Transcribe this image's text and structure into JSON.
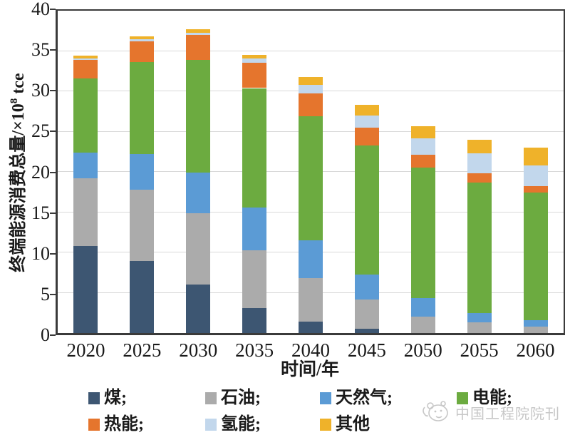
{
  "chart_data": {
    "type": "bar",
    "stacked": true,
    "title": "",
    "xlabel": "时间/年",
    "ylabel": "终端能源消费总量/×10⁸ tce",
    "ylim": [
      0,
      40
    ],
    "ytick_step": 5,
    "grid": true,
    "legend_position": "bottom",
    "categories": [
      "2020",
      "2025",
      "2030",
      "2035",
      "2040",
      "2045",
      "2050",
      "2055",
      "2060"
    ],
    "series": [
      {
        "id": "coal",
        "name": "煤",
        "color": "#3D5672",
        "values": [
          10.8,
          8.9,
          6.0,
          3.1,
          1.4,
          0.5,
          0,
          0,
          0
        ]
      },
      {
        "id": "oil",
        "name": "石油",
        "color": "#ABABAB",
        "values": [
          8.4,
          8.9,
          8.9,
          7.2,
          5.4,
          3.7,
          2.0,
          1.3,
          0.8
        ]
      },
      {
        "id": "natural-gas",
        "name": "天然气",
        "color": "#5B9BD5",
        "values": [
          3.2,
          4.4,
          5.0,
          5.3,
          4.7,
          3.1,
          2.3,
          1.2,
          0.8
        ]
      },
      {
        "id": "electricity",
        "name": "电能",
        "color": "#6CAB40",
        "values": [
          9.2,
          11.4,
          14.0,
          14.8,
          15.4,
          16.0,
          16.2,
          16.2,
          15.8
        ]
      },
      {
        "id": "heat",
        "name": "热能",
        "color": "#E5752D",
        "values": [
          2.3,
          2.6,
          3.1,
          3.1,
          2.8,
          2.2,
          1.6,
          1.1,
          0.8
        ]
      },
      {
        "id": "hydrogen",
        "name": "氢能",
        "color": "#C2D7EC",
        "values": [
          0.2,
          0.3,
          0.3,
          0.6,
          1.1,
          1.5,
          2.1,
          2.5,
          2.6
        ]
      },
      {
        "id": "other",
        "name": "其他",
        "color": "#EFB22A",
        "values": [
          0.3,
          0.3,
          0.4,
          0.4,
          1.0,
          1.3,
          1.5,
          1.7,
          2.2
        ]
      }
    ],
    "totals": [
      34.4,
      36.8,
      37.7,
      34.5,
      31.8,
      28.3,
      25.7,
      24.0,
      23.0
    ]
  },
  "axes": {
    "y_ticks": [
      "0",
      "5",
      "10",
      "15",
      "20",
      "25",
      "30",
      "35",
      "40"
    ],
    "x_ticks": [
      "2020",
      "2025",
      "2030",
      "2035",
      "2040",
      "2045",
      "2050",
      "2055",
      "2060"
    ],
    "x_label": "时间/年",
    "y_label_prefix": "终端能源消费总量/×10",
    "y_label_sup": "8",
    "y_label_suffix": " tce"
  },
  "legend": {
    "rows": [
      [
        {
          "id": "coal",
          "label": "煤;",
          "color": "#3D5672"
        },
        {
          "id": "oil",
          "label": "石油;",
          "color": "#ABABAB"
        },
        {
          "id": "natural-gas",
          "label": "天然气;",
          "color": "#5B9BD5"
        },
        {
          "id": "electricity",
          "label": "电能;",
          "color": "#6CAB40"
        }
      ],
      [
        {
          "id": "heat",
          "label": "热能;",
          "color": "#E5752D"
        },
        {
          "id": "hydrogen",
          "label": "氢能;",
          "color": "#C2D7EC"
        },
        {
          "id": "other",
          "label": "其他",
          "color": "#EFB22A"
        }
      ]
    ]
  },
  "watermark": {
    "text": "中国工程院院刊",
    "logo": "journal-logo"
  },
  "colors": {
    "gridline": "#d9d9d9",
    "axis": "#3a3a3a",
    "text": "#1a1a1a",
    "watermark": "#c7c7c7"
  }
}
